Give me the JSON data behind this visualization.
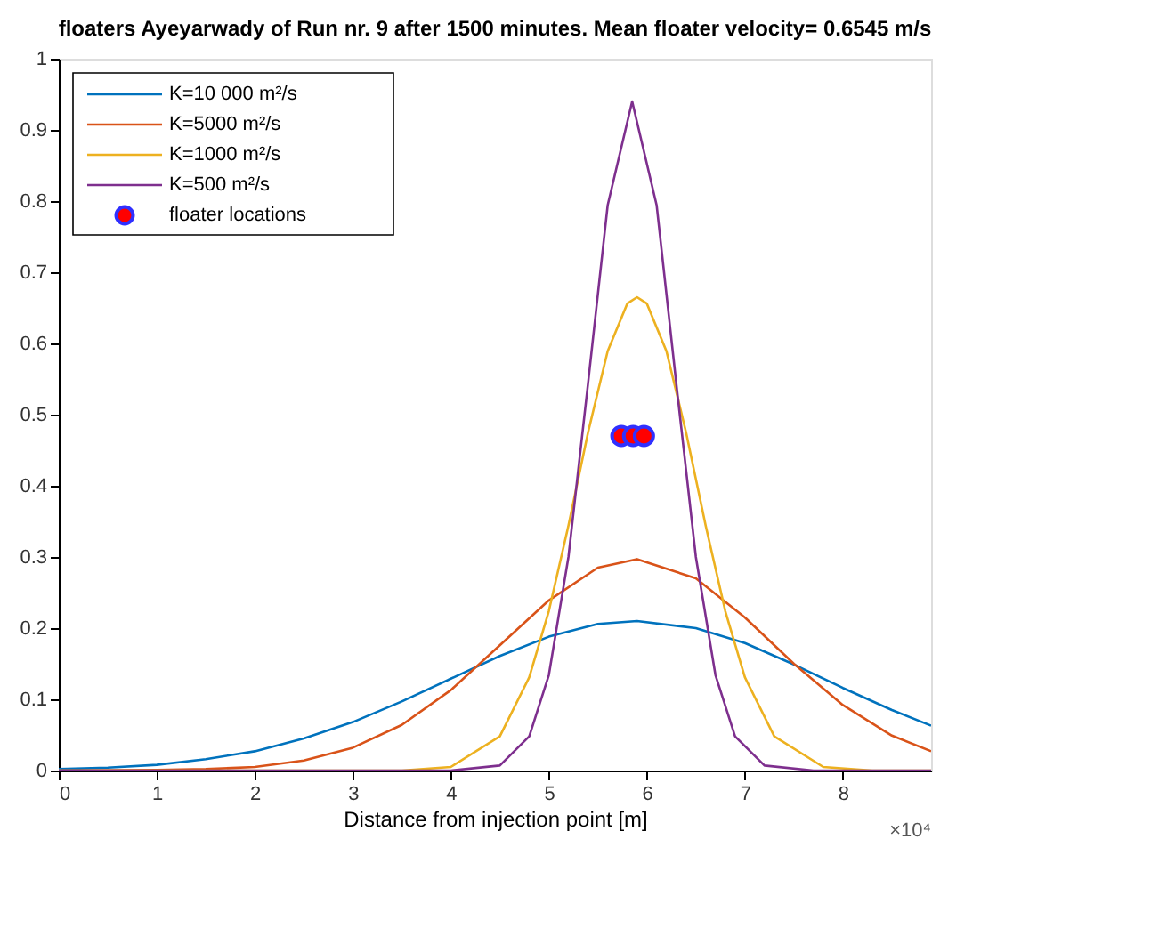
{
  "chart_data": {
    "type": "line",
    "title": "floaters Ayeyarwady of Run nr. 9 after 1500 minutes. Mean floater velocity= 0.6545 m/s",
    "xlabel": "Distance from injection point [m]",
    "xlim": [
      0,
      8.9
    ],
    "xticks": [
      0,
      1,
      2,
      3,
      4,
      5,
      6,
      7,
      8
    ],
    "ylim": [
      0,
      1
    ],
    "yticks": [
      0,
      0.1,
      0.2,
      0.3,
      0.4,
      0.5,
      0.6,
      0.7,
      0.8,
      0.9,
      1
    ],
    "grid": false,
    "legend": "top left",
    "line_style": "solid",
    "annotations": [
      "×10⁴"
    ],
    "series": [
      {
        "name": "K=10 000 m²/s",
        "color": "#0072bd",
        "x": [
          0,
          0.5,
          1,
          1.5,
          2,
          2.5,
          3,
          3.5,
          4,
          4.5,
          5,
          5.5,
          5.9,
          6.5,
          7,
          7.5,
          8,
          8.5,
          8.9
        ],
        "values": [
          0.002,
          0.004,
          0.008,
          0.016,
          0.027,
          0.045,
          0.068,
          0.097,
          0.129,
          0.161,
          0.188,
          0.206,
          0.21,
          0.2,
          0.179,
          0.149,
          0.116,
          0.085,
          0.063
        ]
      },
      {
        "name": "K=5000 m²/s",
        "color": "#d95319",
        "x": [
          0,
          1,
          1.5,
          2,
          2.5,
          3,
          3.5,
          4,
          4.5,
          5,
          5.5,
          5.9,
          6.5,
          7,
          7.5,
          8,
          8.5,
          8.9
        ],
        "values": [
          0,
          0.001,
          0.002,
          0.005,
          0.014,
          0.032,
          0.064,
          0.113,
          0.176,
          0.239,
          0.285,
          0.297,
          0.27,
          0.215,
          0.15,
          0.092,
          0.049,
          0.027
        ]
      },
      {
        "name": "K=1000 m²/s",
        "color": "#edb120",
        "x": [
          0,
          3.5,
          4,
          4.5,
          4.8,
          5,
          5.2,
          5.4,
          5.6,
          5.8,
          5.9,
          6,
          6.2,
          6.4,
          6.6,
          6.8,
          7,
          7.3,
          7.8,
          8.3,
          8.9
        ],
        "values": [
          0,
          0,
          0.005,
          0.048,
          0.131,
          0.224,
          0.344,
          0.475,
          0.589,
          0.656,
          0.665,
          0.656,
          0.589,
          0.475,
          0.344,
          0.224,
          0.131,
          0.048,
          0.005,
          0,
          0
        ]
      },
      {
        "name": "K=500 m²/s",
        "color": "#7e2f8e",
        "x": [
          0,
          4,
          4.5,
          4.8,
          5,
          5.2,
          5.4,
          5.6,
          5.85,
          6.1,
          6.3,
          6.5,
          6.7,
          6.9,
          7.2,
          7.7,
          8.9
        ],
        "values": [
          0,
          0,
          0.007,
          0.048,
          0.134,
          0.3,
          0.544,
          0.794,
          0.94,
          0.794,
          0.544,
          0.3,
          0.134,
          0.048,
          0.007,
          0,
          0
        ]
      },
      {
        "name": "floater locations",
        "type": "scatter",
        "marker": "circle",
        "color": "#ff0000",
        "x": [
          5.74,
          5.86,
          5.97
        ],
        "values": [
          0.47,
          0.47,
          0.47
        ]
      }
    ]
  }
}
